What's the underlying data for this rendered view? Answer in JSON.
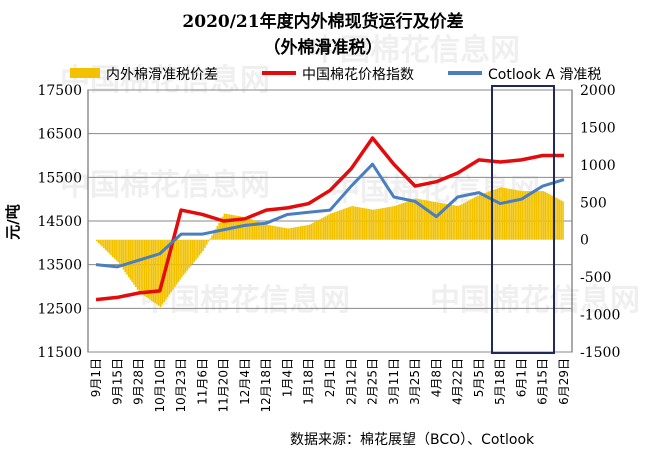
{
  "chart_data": {
    "type": "bar+line",
    "title": "2020/21年度内外棉现货运行及价差",
    "subtitle": "（外棉滑准税）",
    "ylabel_left": "元/吨",
    "source": "数据来源：棉花展望（BCO）、Cotlook",
    "legend_position": "top",
    "left_axis": {
      "range": [
        11500,
        17500
      ],
      "ticks": [
        11500,
        12500,
        13500,
        14500,
        15500,
        16500,
        17500
      ]
    },
    "right_axis": {
      "range": [
        -1500,
        2000
      ],
      "ticks": [
        -1500,
        -1000,
        -500,
        0,
        500,
        1000,
        1500,
        2000
      ]
    },
    "x_categories": [
      "9月1日",
      "9月15日",
      "9月28日",
      "10月10日",
      "10月23日",
      "11月6日",
      "11月20日",
      "12月4日",
      "12月18日",
      "1月4日",
      "1月18日",
      "2月1日",
      "2月12日",
      "2月25日",
      "3月11日",
      "3月25日",
      "4月8日",
      "4月22日",
      "5月5日",
      "5月18日",
      "6月1日",
      "6月15日",
      "6月29日"
    ],
    "series": [
      {
        "name": "内外棉滑准税价差",
        "axis": "right",
        "type": "bar",
        "color": "#f2c200",
        "values": [
          -20,
          -300,
          -700,
          -900,
          -500,
          -150,
          350,
          300,
          200,
          150,
          200,
          350,
          450,
          400,
          450,
          550,
          500,
          450,
          600,
          700,
          650,
          650,
          500
        ]
      },
      {
        "name": "中国棉花价格指数",
        "axis": "left",
        "type": "line",
        "color": "#e30b0b",
        "values": [
          12700,
          12750,
          12850,
          12900,
          14750,
          14650,
          14500,
          14550,
          14750,
          14800,
          14900,
          15200,
          15700,
          16400,
          15800,
          15300,
          15400,
          15600,
          15900,
          15850,
          15900,
          16000,
          16000
        ]
      },
      {
        "name": "Cotlook A 滑准税",
        "axis": "left",
        "type": "line",
        "color": "#4a7ebf",
        "values": [
          13500,
          13450,
          13600,
          13750,
          14200,
          14200,
          14300,
          14400,
          14450,
          14650,
          14700,
          14750,
          15300,
          15800,
          15050,
          14950,
          14600,
          15050,
          15150,
          14900,
          15000,
          15300,
          15450
        ]
      }
    ],
    "annotation": "highlight box around 6月1日 – 6月29日"
  }
}
